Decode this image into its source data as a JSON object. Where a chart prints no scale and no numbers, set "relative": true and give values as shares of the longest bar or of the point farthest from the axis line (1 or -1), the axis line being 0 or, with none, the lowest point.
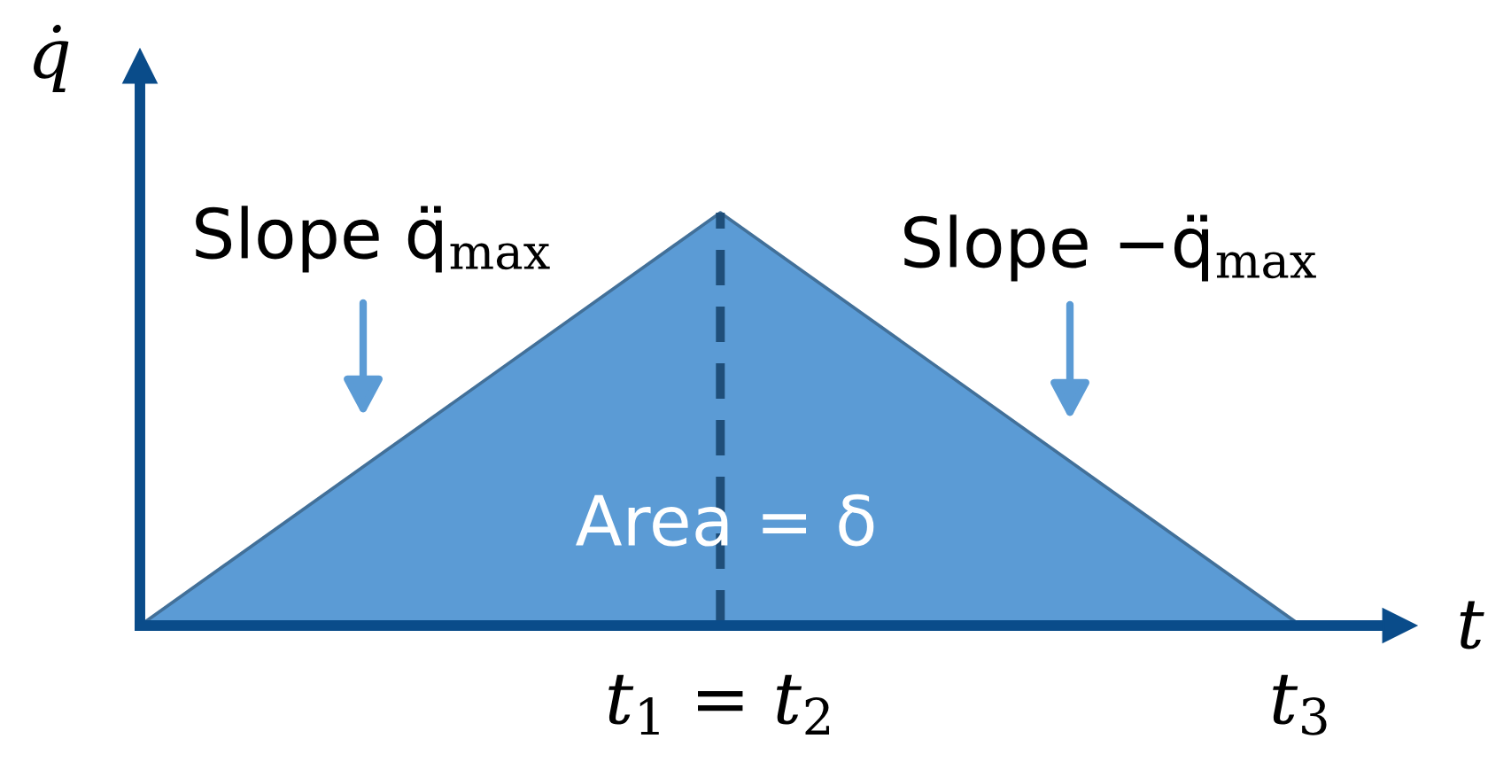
{
  "chart_data": {
    "type": "area",
    "relative": true,
    "categories": [
      null,
      "t$_{1}$ = t$_{2}$",
      "t$_{3}$"
    ],
    "xlabel": "t",
    "ylabel": "q̇",
    "tick_labels": "x",
    "series": [
      {
        "color": "#5b9bd5",
        "values": [
          0,
          1,
          0
        ]
      },
      {
        "type": "line",
        "x": [
          "t$_{1}$ = t$_{2}$",
          "t$_{1}$ = t$_{2}$"
        ],
        "values": [
          0,
          1
        ],
        "color": "#1f4e79",
        "line_style": "dashed"
      }
    ],
    "annotations": [
      "Slope q̈$_{max}$",
      "Slope −q̈$_{max}$",
      "Area = δ"
    ]
  }
}
